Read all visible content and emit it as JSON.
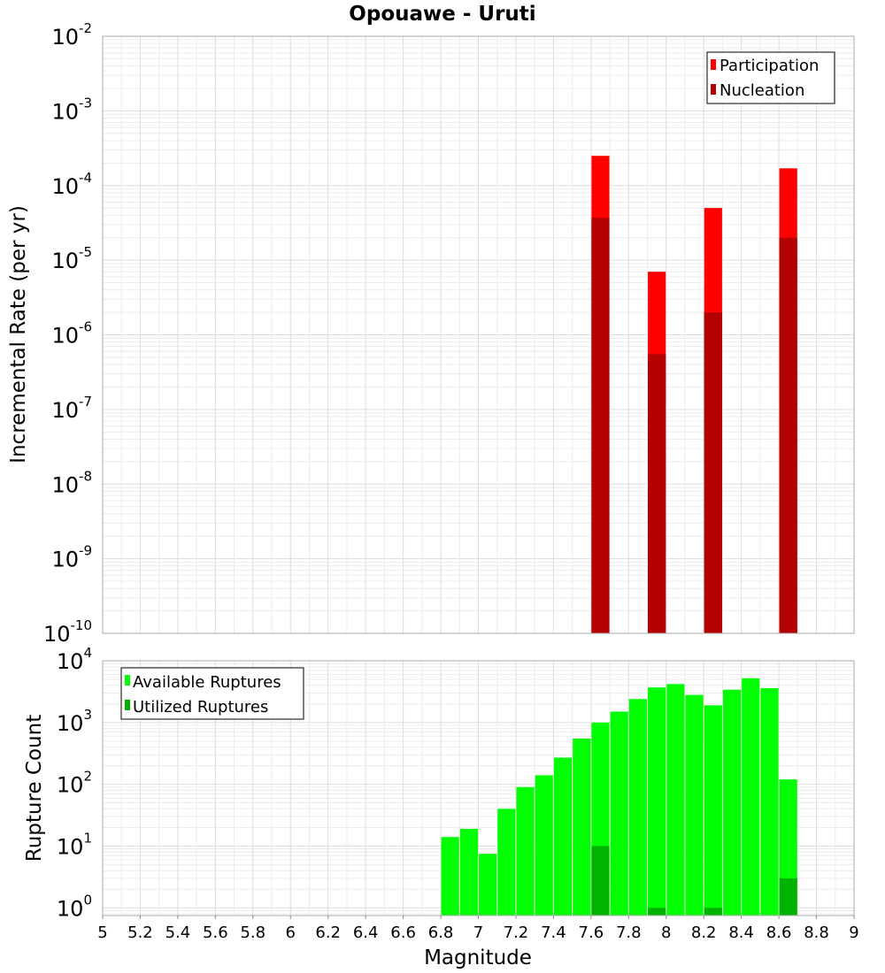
{
  "chart_data": [
    {
      "type": "bar",
      "title": "Opouawe - Uruti",
      "ylabel": "Incremental Rate (per yr)",
      "xlabel": "",
      "y_scale": "log",
      "ylim": [
        1e-10,
        0.01
      ],
      "xlim": [
        5,
        9
      ],
      "grid": true,
      "legend_placement": "top-right",
      "y_tick_labels": [
        {
          "base": "10",
          "exp": "-10"
        },
        {
          "base": "10",
          "exp": "-9"
        },
        {
          "base": "10",
          "exp": "-8"
        },
        {
          "base": "10",
          "exp": "-7"
        },
        {
          "base": "10",
          "exp": "-6"
        },
        {
          "base": "10",
          "exp": "-5"
        },
        {
          "base": "10",
          "exp": "-4"
        },
        {
          "base": "10",
          "exp": "-3"
        },
        {
          "base": "10",
          "exp": "-2"
        }
      ],
      "series": [
        {
          "name": "Participation",
          "color": "#ff0000",
          "x": [
            7.65,
            7.95,
            8.25,
            8.65
          ],
          "values": [
            0.00025,
            7e-06,
            5e-05,
            0.00017
          ]
        },
        {
          "name": "Nucleation",
          "color": "#b30000",
          "x": [
            7.65,
            7.95,
            8.25,
            8.65
          ],
          "values": [
            3.7e-05,
            5.5e-07,
            2e-06,
            2e-05
          ]
        }
      ]
    },
    {
      "type": "bar",
      "ylabel": "Rupture Count",
      "xlabel": "Magnitude",
      "y_scale": "log",
      "ylim": [
        0.75,
        10000
      ],
      "xlim": [
        5,
        9
      ],
      "grid": true,
      "legend_placement": "top-left",
      "x_tick_labels": [
        "5",
        "5.2",
        "5.4",
        "5.6",
        "5.8",
        "6",
        "6.2",
        "6.4",
        "6.6",
        "6.8",
        "7",
        "7.2",
        "7.4",
        "7.6",
        "7.8",
        "8",
        "8.2",
        "8.4",
        "8.6",
        "8.8",
        "9"
      ],
      "y_tick_labels": [
        {
          "base": "10",
          "exp": "0"
        },
        {
          "base": "10",
          "exp": "1"
        },
        {
          "base": "10",
          "exp": "2"
        },
        {
          "base": "10",
          "exp": "3"
        },
        {
          "base": "10",
          "exp": "4"
        }
      ],
      "series": [
        {
          "name": "Available Ruptures",
          "color": "#00ff00",
          "x": [
            6.85,
            6.95,
            7.05,
            7.15,
            7.25,
            7.35,
            7.45,
            7.55,
            7.65,
            7.75,
            7.85,
            7.95,
            8.05,
            8.15,
            8.25,
            8.35,
            8.45,
            8.55,
            8.65
          ],
          "values": [
            14,
            19,
            7.5,
            40,
            90,
            140,
            270,
            550,
            1000,
            1500,
            2400,
            3700,
            4200,
            2800,
            1900,
            3400,
            5200,
            3600,
            120
          ]
        },
        {
          "name": "Utilized Ruptures",
          "color": "#00b300",
          "x": [
            7.65,
            7.95,
            8.25,
            8.65
          ],
          "values": [
            10,
            1,
            1,
            3
          ]
        }
      ]
    }
  ]
}
